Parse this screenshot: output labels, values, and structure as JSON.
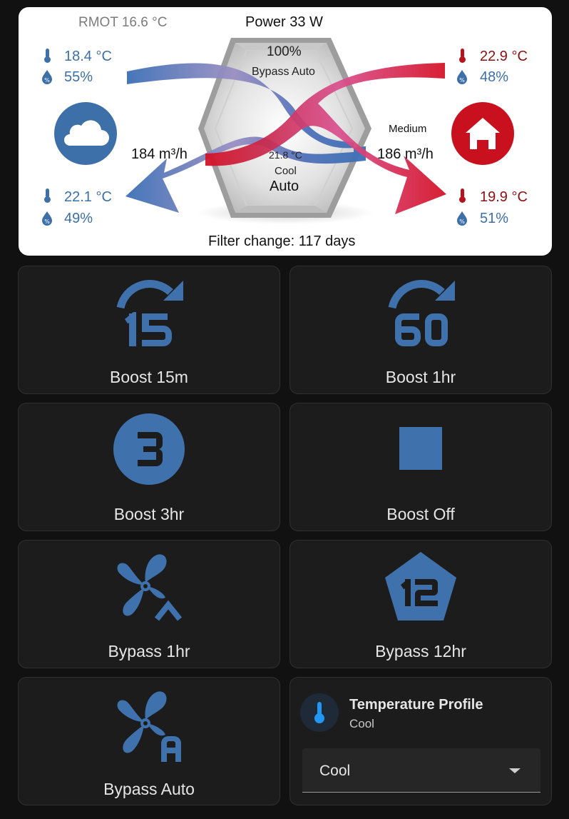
{
  "flow": {
    "rmot": "RMOT 16.6 °C",
    "power": "Power 33 W",
    "bypass_percent": "100%",
    "bypass_mode": "Bypass Auto",
    "core_temp": "21.8 °C",
    "core_mode": "Cool",
    "core_auto": "Auto",
    "fan_speed": "Medium",
    "supply_flow": "184 m³/h",
    "extract_flow": "186 m³/h",
    "filter": "Filter change: 117 days",
    "outdoor": {
      "temp": "18.4 °C",
      "humidity": "55%"
    },
    "supply": {
      "temp": "22.1 °C",
      "humidity": "49%"
    },
    "extract": {
      "temp": "22.9 °C",
      "humidity": "48%"
    },
    "exhaust": {
      "temp": "19.9 °C",
      "humidity": "51%"
    },
    "colors": {
      "cold": "#3d6fa8",
      "warm": "#c8101e",
      "icon_blue": "#3f72ad"
    }
  },
  "buttons": [
    {
      "label": "Boost 15m",
      "icon": "timer-15-icon"
    },
    {
      "label": "Boost 1hr",
      "icon": "timer-60-icon"
    },
    {
      "label": "Boost 3hr",
      "icon": "numeric-3-circle-icon"
    },
    {
      "label": "Boost Off",
      "icon": "stop-icon"
    },
    {
      "label": "Bypass 1hr",
      "icon": "fan-chevron-up-icon"
    },
    {
      "label": "Bypass 12hr",
      "icon": "numeric-12-pentagon-icon"
    },
    {
      "label": "Bypass Auto",
      "icon": "fan-auto-icon"
    }
  ],
  "profile": {
    "title": "Temperature Profile",
    "state": "Cool",
    "selected": "Cool",
    "icon": "thermometer-icon"
  }
}
